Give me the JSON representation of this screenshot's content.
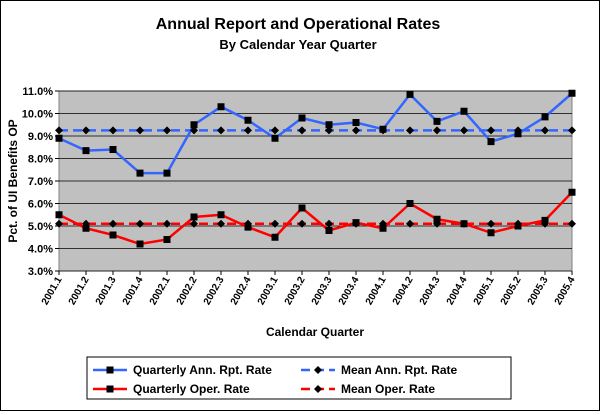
{
  "chart_data": {
    "type": "line",
    "title": "Annual Report and Operational Rates",
    "subtitle": "By Calendar Year Quarter",
    "xlabel": "Calendar Quarter",
    "ylabel": "Pct. of UI Benefits OP",
    "ylim": [
      3.0,
      11.0
    ],
    "yticks": [
      "3.0%",
      "4.0%",
      "5.0%",
      "6.0%",
      "7.0%",
      "8.0%",
      "9.0%",
      "10.0%",
      "11.0%"
    ],
    "grid": true,
    "legend_placement": "bottom",
    "plot_background": "#c0c0c0",
    "categories": [
      "2001.1",
      "2001.2",
      "2001.3",
      "2001.4",
      "2002.1",
      "2002.2",
      "2002.3",
      "2002.4",
      "2003.1",
      "2003.2",
      "2003.3",
      "2003.4",
      "2004.1",
      "2004.2",
      "2004.3",
      "2004.4",
      "2005.1",
      "2005.2",
      "2005.3",
      "2005.4"
    ],
    "series": [
      {
        "name": "Quarterly Ann. Rpt. Rate",
        "color": "#3366ff",
        "marker": "square",
        "dash": false,
        "values": [
          8.9,
          8.35,
          8.4,
          7.35,
          7.35,
          9.5,
          10.3,
          9.7,
          8.9,
          9.8,
          9.5,
          9.6,
          9.3,
          10.85,
          9.65,
          10.1,
          8.75,
          9.1,
          9.85,
          10.9
        ]
      },
      {
        "name": "Mean Ann. Rpt. Rate",
        "color": "#3366ff",
        "marker": "diamond",
        "dash": true,
        "values": [
          9.25,
          9.25,
          9.25,
          9.25,
          9.25,
          9.25,
          9.25,
          9.25,
          9.25,
          9.25,
          9.25,
          9.25,
          9.25,
          9.25,
          9.25,
          9.25,
          9.25,
          9.25,
          9.25,
          9.25
        ]
      },
      {
        "name": "Quarterly Oper. Rate",
        "color": "#ff0000",
        "marker": "square",
        "dash": false,
        "values": [
          5.5,
          4.9,
          4.6,
          4.2,
          4.4,
          5.4,
          5.5,
          4.95,
          4.5,
          5.8,
          4.8,
          5.15,
          4.9,
          6.0,
          5.3,
          5.1,
          4.7,
          5.0,
          5.25,
          6.5
        ]
      },
      {
        "name": "Mean Oper. Rate",
        "color": "#ff0000",
        "marker": "diamond",
        "dash": true,
        "values": [
          5.1,
          5.1,
          5.1,
          5.1,
          5.1,
          5.1,
          5.1,
          5.1,
          5.1,
          5.1,
          5.1,
          5.1,
          5.1,
          5.1,
          5.1,
          5.1,
          5.1,
          5.1,
          5.1,
          5.1
        ]
      }
    ]
  }
}
